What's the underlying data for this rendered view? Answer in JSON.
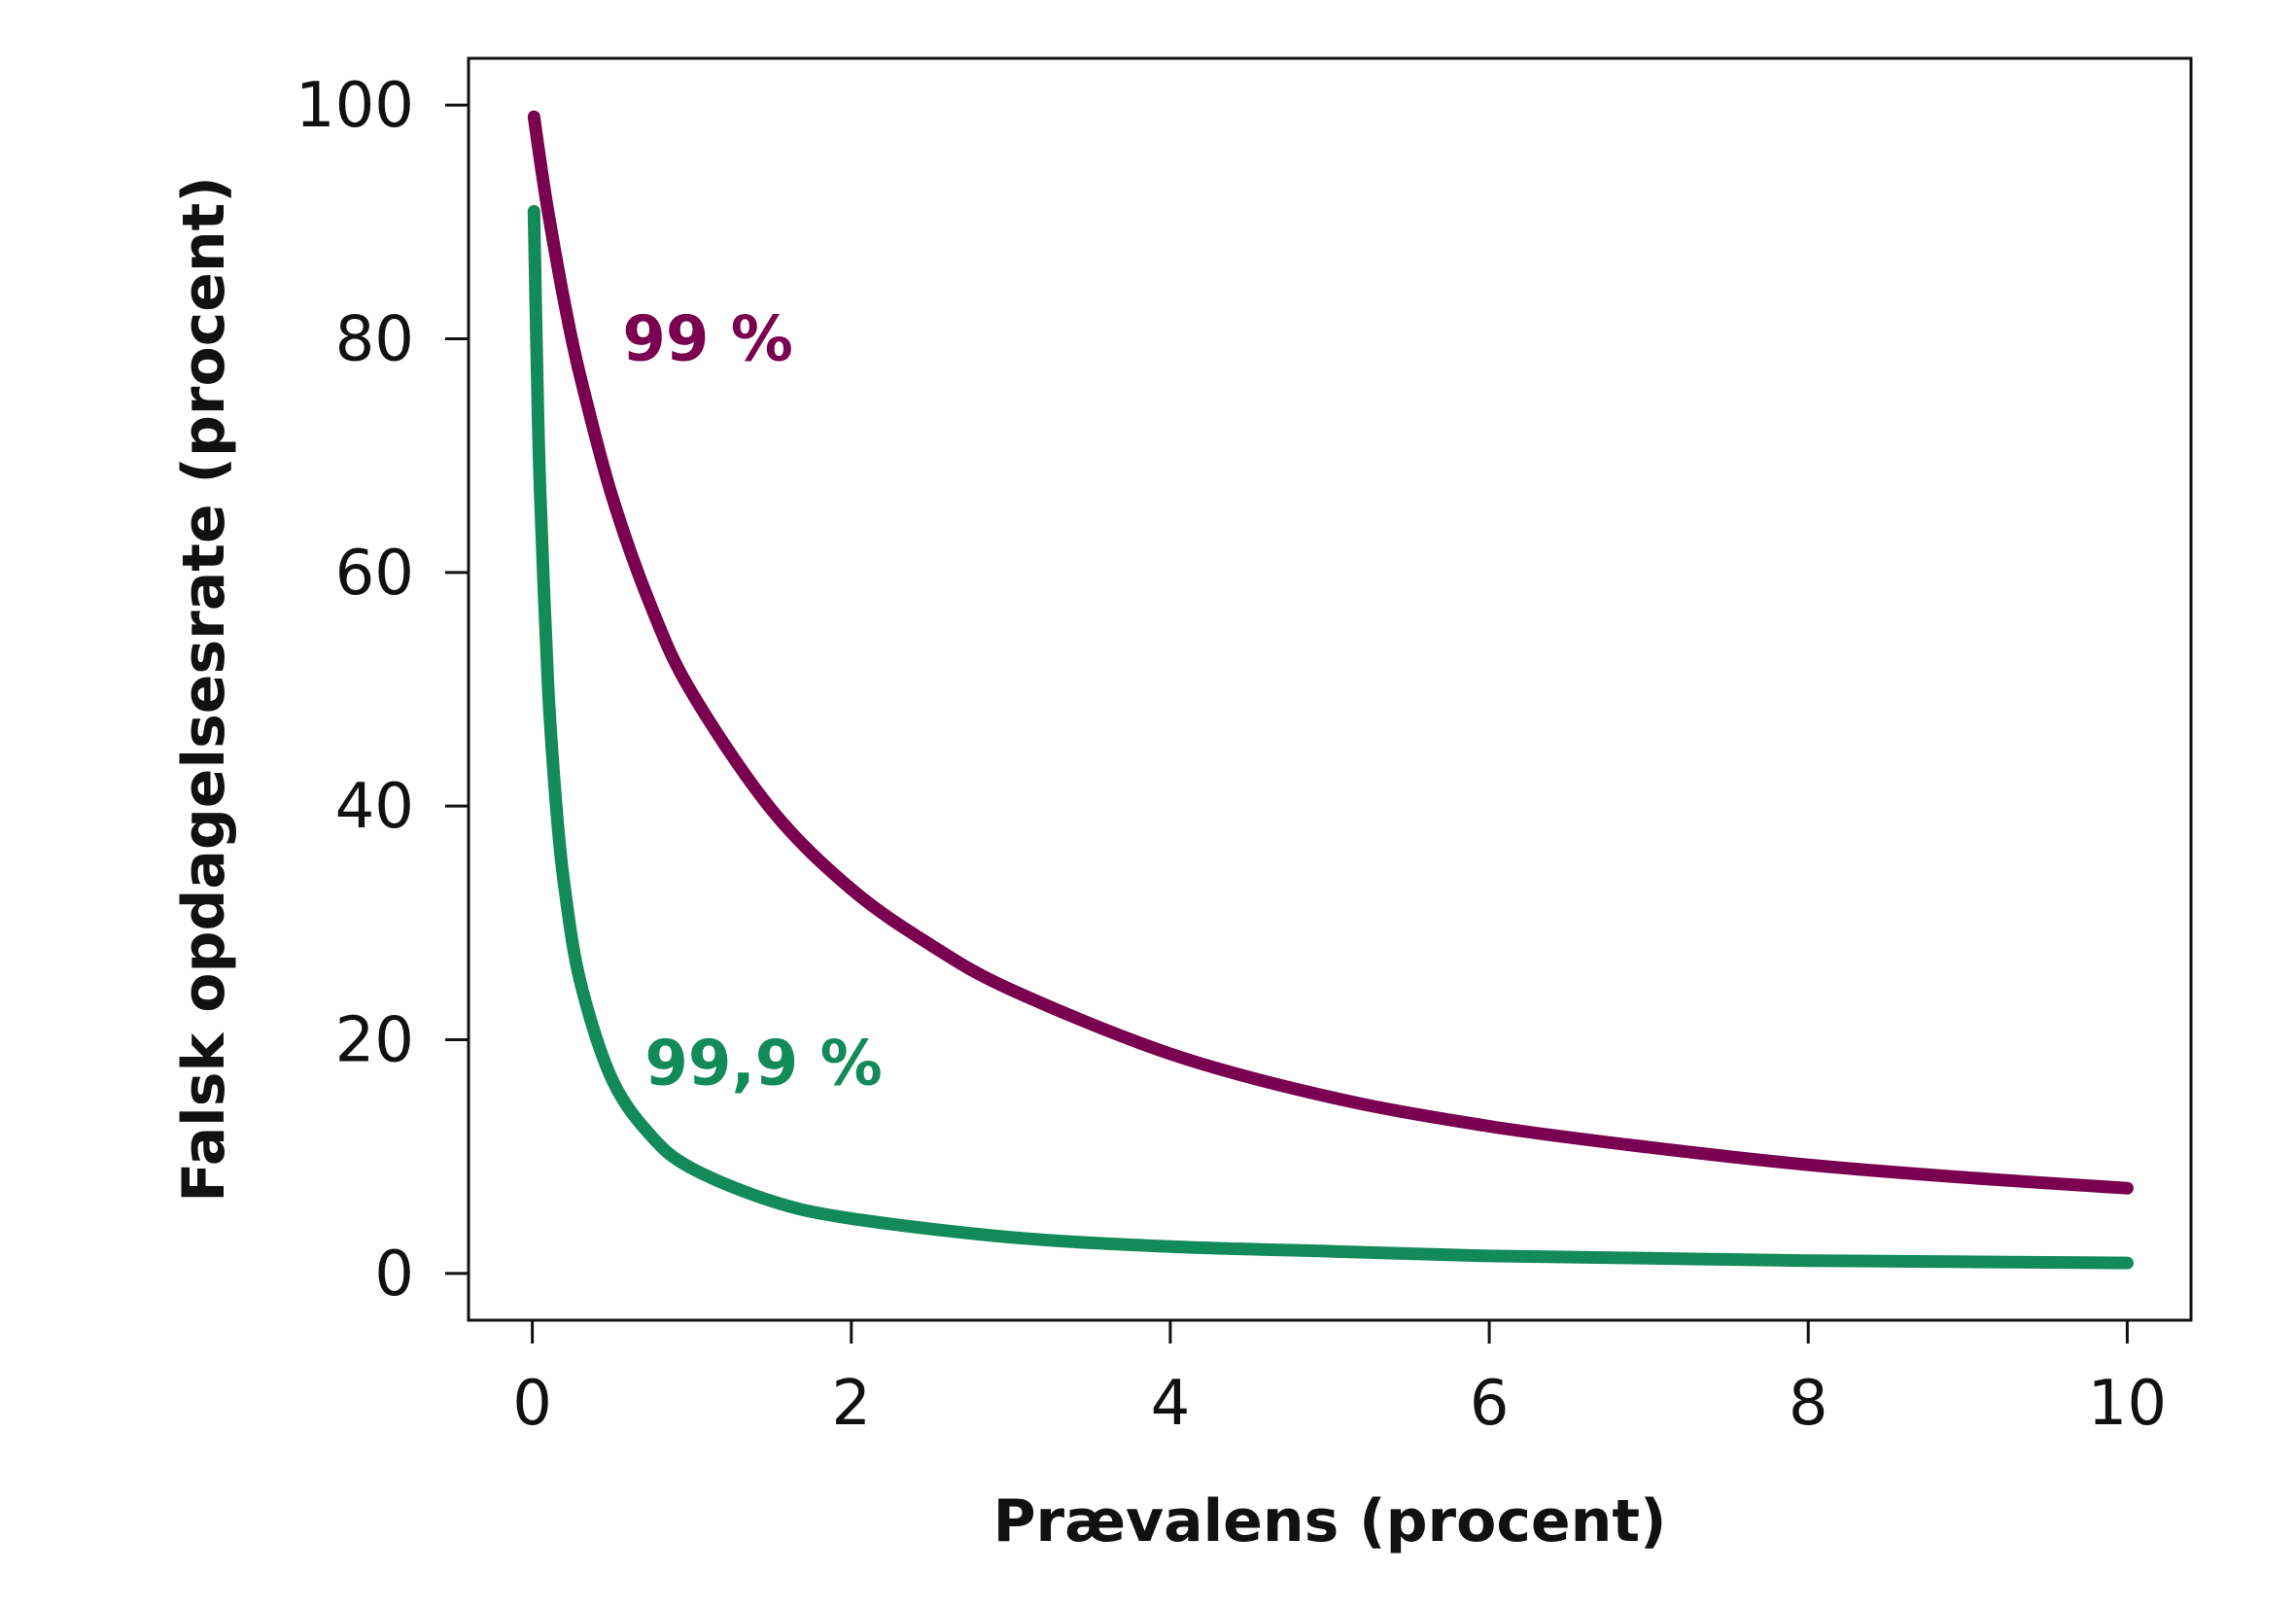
{
  "chart_data": {
    "type": "line",
    "title": "",
    "xlabel": "Prævalens (procent)",
    "ylabel": "Falsk opdagelsesrate (procent)",
    "xlim": [
      -0.4,
      10.4
    ],
    "ylim": [
      -4,
      104
    ],
    "x_ticks": [
      0,
      2,
      4,
      6,
      8,
      10
    ],
    "x_tick_labels": [
      "0",
      "2",
      "4",
      "6",
      "8",
      "10"
    ],
    "y_ticks": [
      0,
      20,
      40,
      60,
      80,
      100
    ],
    "y_tick_labels": [
      "0",
      "20",
      "40",
      "60",
      "80",
      "100"
    ],
    "grid": false,
    "legend": "none",
    "series": [
      {
        "label": "99 %",
        "color": "#7a0050",
        "label_at": [
          1.1,
          80
        ],
        "x": [
          0.01,
          0.05,
          0.1,
          0.2,
          0.3,
          0.5,
          0.75,
          1,
          1.5,
          2,
          2.5,
          3,
          4,
          5,
          6,
          7,
          8,
          9,
          10
        ],
        "y": [
          99.0,
          95.2,
          90.8,
          83.2,
          76.8,
          66.5,
          56.9,
          49.7,
          39.7,
          32.9,
          28.1,
          24.3,
          18.8,
          15.1,
          12.6,
          10.8,
          9.3,
          8.2,
          7.3
        ]
      },
      {
        "label": "99,9 %",
        "color": "#138a5a",
        "label_at": [
          1.45,
          18
        ],
        "x": [
          0.01,
          0.03,
          0.05,
          0.1,
          0.15,
          0.2,
          0.3,
          0.5,
          0.75,
          1,
          1.5,
          2,
          3,
          4,
          5,
          6,
          7,
          8,
          9,
          10
        ],
        "y": [
          90.9,
          76.9,
          66.6,
          50.0,
          40.0,
          33.3,
          25.0,
          16.6,
          11.7,
          9.0,
          6.2,
          4.7,
          3.1,
          2.3,
          1.9,
          1.5,
          1.3,
          1.1,
          1.0,
          0.9
        ]
      }
    ]
  }
}
